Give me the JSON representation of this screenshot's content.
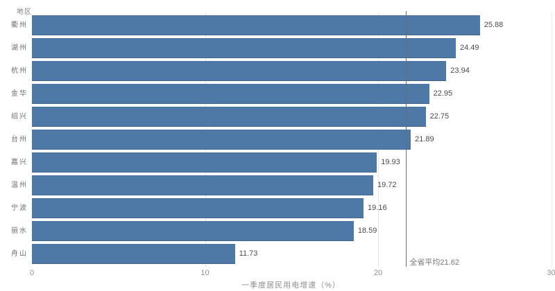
{
  "chart_data": {
    "type": "bar",
    "orientation": "horizontal",
    "ylabel": "地区",
    "xlabel": "一季度居民用电增速（%）",
    "categories": [
      "衢州",
      "湖州",
      "杭州",
      "金华",
      "绍兴",
      "台州",
      "嘉兴",
      "温州",
      "宁波",
      "丽水",
      "舟山"
    ],
    "values": [
      25.88,
      24.49,
      23.94,
      22.95,
      22.75,
      21.89,
      19.93,
      19.72,
      19.16,
      18.59,
      11.73
    ],
    "xlim": [
      0,
      30
    ],
    "xticks": [
      0,
      10,
      20,
      30
    ],
    "reference_line": {
      "value": 21.62,
      "label": "全省平均21.62"
    },
    "bar_color": "#4e79a7",
    "grid": "faint-vertical-gridlines",
    "legend": "none"
  }
}
